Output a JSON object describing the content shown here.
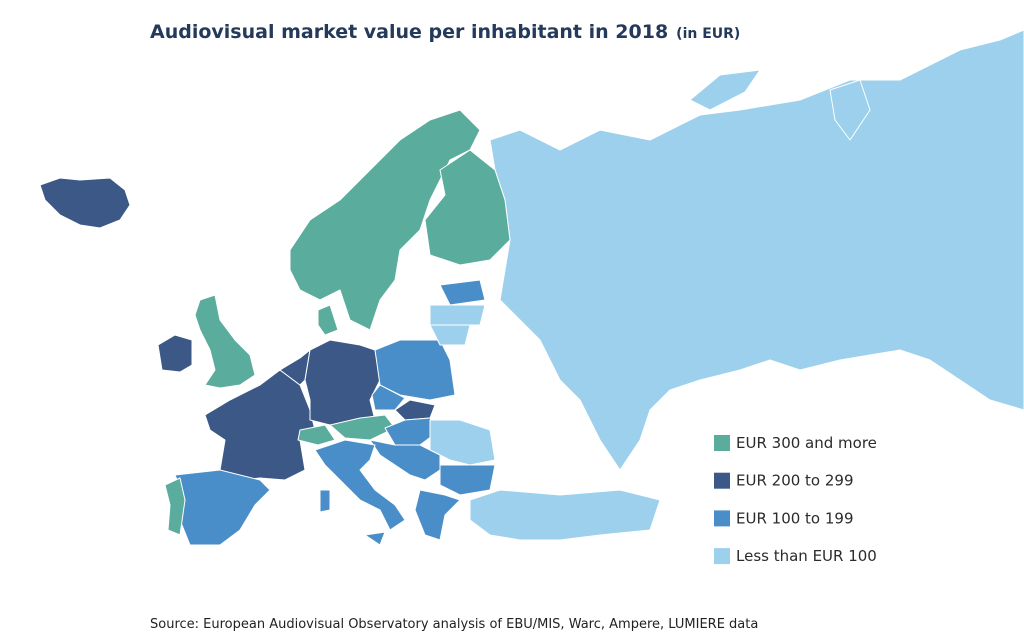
{
  "title": "Audiovisual market value per inhabitant in 2018",
  "title_unit": "(in EUR)",
  "legend": [
    {
      "label": "EUR 300 and more",
      "color": "#5aac9c"
    },
    {
      "label": "EUR 200 to 299",
      "color": "#3b5886"
    },
    {
      "label": "EUR 100 to 199",
      "color": "#4a8ec9"
    },
    {
      "label": "Less than EUR 100",
      "color": "#9cd0ec"
    }
  ],
  "source": "Source: European Audiovisual Observatory analysis of EBU/MIS, Warc, Ampere, LUMIERE data"
}
